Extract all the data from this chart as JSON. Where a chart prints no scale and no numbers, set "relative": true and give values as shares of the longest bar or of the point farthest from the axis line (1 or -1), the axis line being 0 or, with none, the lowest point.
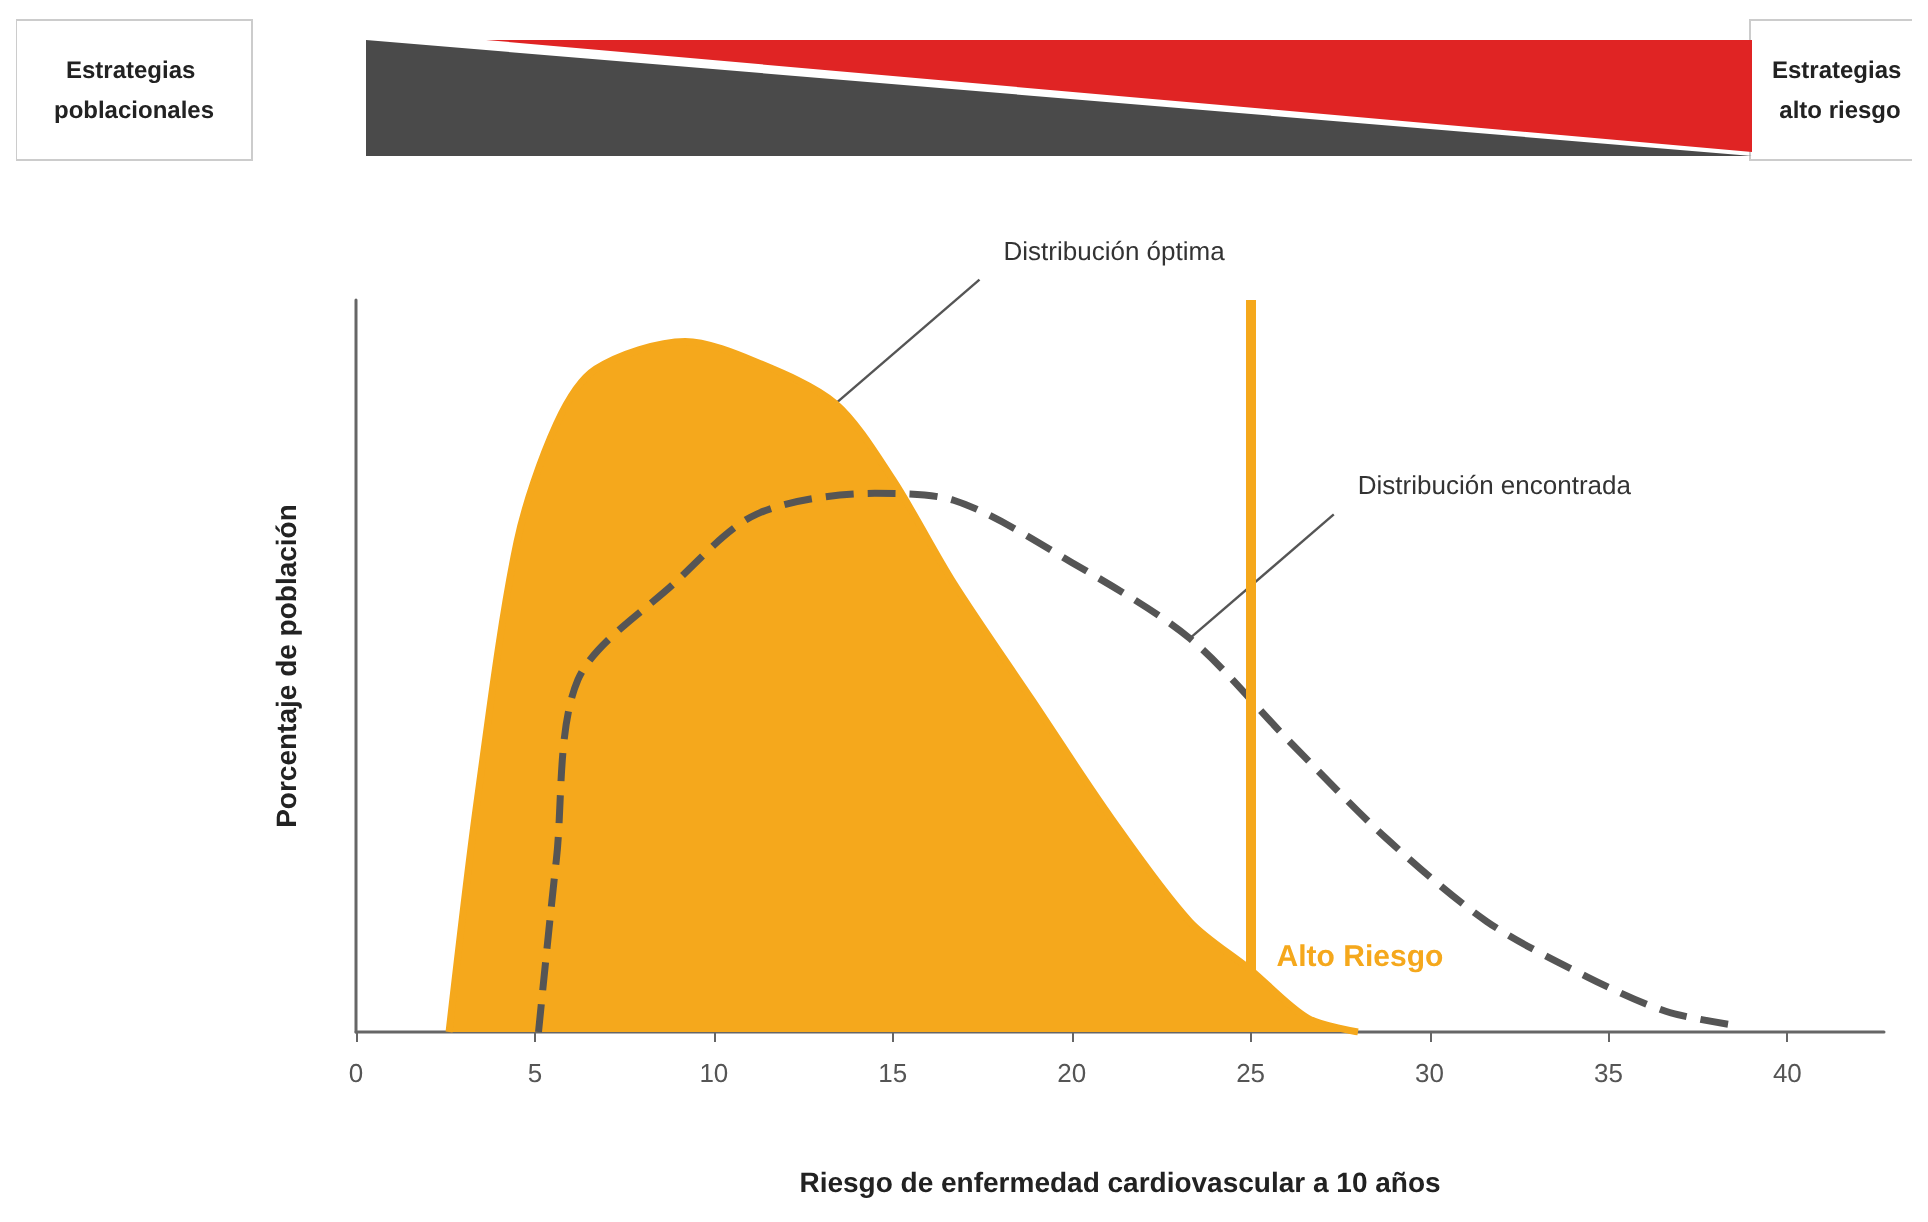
{
  "chart_data": {
    "type": "area",
    "relative": true,
    "xlabel": "Riesgo de enfermedad cardiovascular a 10 años",
    "ylabel": "Porcentaje de población",
    "xlim": [
      0,
      42.7
    ],
    "xticks": [
      0,
      5,
      10,
      15,
      20,
      25,
      30,
      35,
      40
    ],
    "grid": false,
    "series": [
      {
        "color": "#f5a81c",
        "x": [
          2.6,
          3.4,
          4.5,
          5.6,
          6.7,
          9.2,
          11.2,
          13.4,
          15.0,
          16.7,
          18.9,
          21.1,
          23.3,
          25.0,
          26.6,
          28.0
        ],
        "values": [
          0,
          0.34,
          0.71,
          0.88,
          0.96,
          1.0,
          0.97,
          0.91,
          0.8,
          0.65,
          0.48,
          0.31,
          0.16,
          0.09,
          0.02,
          0
        ]
      },
      {
        "type": "line",
        "color": "#555555",
        "line_style": "dashed",
        "x": [
          5.1,
          5.6,
          6.2,
          8.9,
          11.2,
          14.5,
          16.7,
          20.0,
          23.3,
          26.1,
          28.8,
          31.6,
          34.4,
          36.6,
          38.5
        ],
        "values": [
          0,
          0.25,
          0.51,
          0.65,
          0.75,
          0.78,
          0.77,
          0.68,
          0.57,
          0.42,
          0.28,
          0.16,
          0.08,
          0.03,
          0.01
        ]
      }
    ],
    "ref_lines": [
      {
        "axis": "x",
        "value": 25,
        "label": "Alto Riesgo",
        "color": "#f5a81c"
      }
    ],
    "annotations": [
      "Estrategias poblacionales",
      "Estrategias alto riesgo",
      {
        "text": "Distribución óptima",
        "x": 13.4,
        "y": 0.91
      },
      {
        "text": "Distribución encontrada",
        "x": 23.3,
        "y": 0.57
      }
    ]
  }
}
